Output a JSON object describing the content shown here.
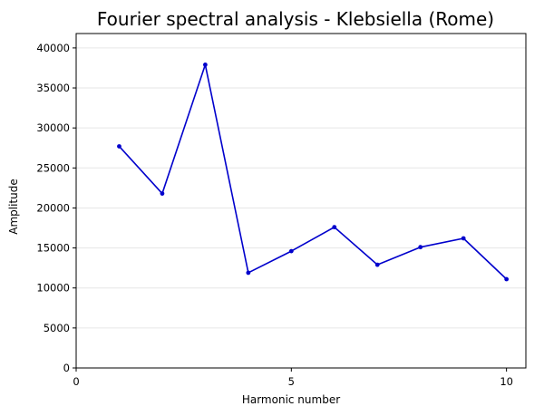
{
  "chart_data": {
    "type": "line",
    "title": "Fourier spectral analysis - Klebsiella (Rome)",
    "xlabel": "Harmonic number",
    "ylabel": "Amplitude",
    "xlim": [
      0,
      10.45
    ],
    "ylim": [
      0,
      41800
    ],
    "xticks": [
      0,
      5,
      10
    ],
    "yticks": [
      0,
      5000,
      10000,
      15000,
      20000,
      25000,
      30000,
      35000,
      40000
    ],
    "grid": "horizontal",
    "line_color": "#0000cc",
    "series": [
      {
        "x": [
          1,
          2,
          3,
          4,
          5,
          6,
          7,
          8,
          9,
          10
        ],
        "values": [
          27700,
          21800,
          37900,
          11900,
          14600,
          17600,
          12900,
          15100,
          16200,
          11100
        ]
      }
    ]
  }
}
